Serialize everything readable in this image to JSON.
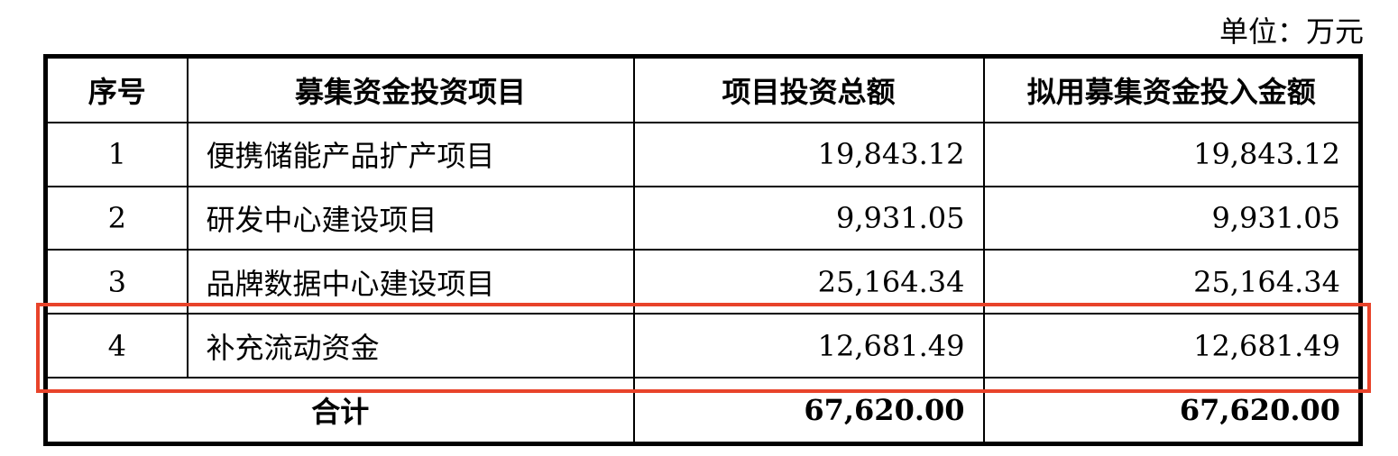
{
  "unit_label": "单位：万元",
  "table": {
    "headers": [
      "序号",
      "募集资金投资项目",
      "项目投资总额",
      "拟用募集资金投入金额"
    ],
    "rows": [
      {
        "no": "1",
        "project": "便携储能产品扩产项目",
        "total": "19,843.12",
        "raised": "19,843.12"
      },
      {
        "no": "2",
        "project": "研发中心建设项目",
        "total": "9,931.05",
        "raised": "9,931.05"
      },
      {
        "no": "3",
        "project": "品牌数据中心建设项目",
        "total": "25,164.34",
        "raised": "25,164.34"
      },
      {
        "no": "4",
        "project": "补充流动资金",
        "total": "12,681.49",
        "raised": "12,681.49"
      }
    ],
    "footer": {
      "label": "合计",
      "total": "67,620.00",
      "raised": "67,620.00"
    }
  },
  "highlight_color": "#e8432a"
}
